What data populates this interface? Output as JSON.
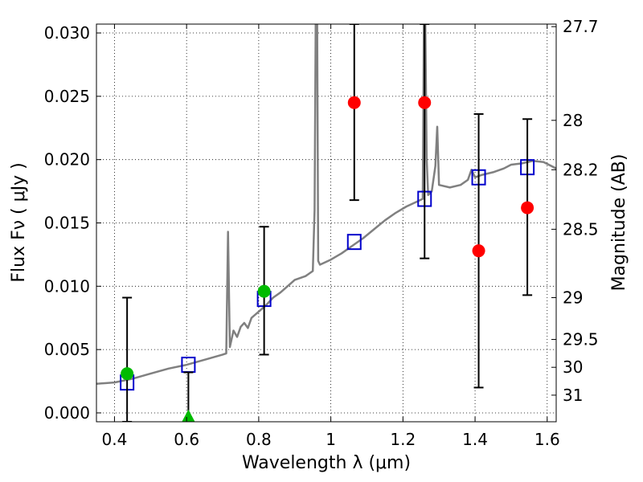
{
  "chart_data": {
    "type": "scatter",
    "xlabel": "Wavelength  λ (μm)",
    "ylabel": "Flux  Fν  ( μJy )",
    "y2label": "Magnitude (AB)",
    "xlim": [
      0.35,
      1.625
    ],
    "ylim": [
      -0.0007,
      0.0307
    ],
    "grid": true,
    "xticks": [
      {
        "value": 0.4,
        "label": "0.4"
      },
      {
        "value": 0.6,
        "label": "0.6"
      },
      {
        "value": 0.8,
        "label": "0.8"
      },
      {
        "value": 1.0,
        "label": "1"
      },
      {
        "value": 1.2,
        "label": "1.2"
      },
      {
        "value": 1.4,
        "label": "1.4"
      },
      {
        "value": 1.6,
        "label": "1.6"
      }
    ],
    "yticks": [
      {
        "value": 0.0,
        "label": "0.000"
      },
      {
        "value": 0.005,
        "label": "0.005"
      },
      {
        "value": 0.01,
        "label": "0.010"
      },
      {
        "value": 0.015,
        "label": "0.015"
      },
      {
        "value": 0.02,
        "label": "0.020"
      },
      {
        "value": 0.025,
        "label": "0.025"
      },
      {
        "value": 0.03,
        "label": "0.030"
      }
    ],
    "y2ticks": [
      {
        "flux": 0.0305,
        "label": "27.7"
      },
      {
        "flux": 0.0231,
        "label": "28"
      },
      {
        "flux": 0.0192,
        "label": "28.2"
      },
      {
        "flux": 0.0145,
        "label": "28.5"
      },
      {
        "flux": 0.0091,
        "label": "29"
      },
      {
        "flux": 0.0058,
        "label": "29.5"
      },
      {
        "flux": 0.0036,
        "label": "30"
      },
      {
        "flux": 0.0014,
        "label": "31"
      }
    ],
    "series": [
      {
        "kind": "line",
        "color": "#808080",
        "points": [
          [
            0.35,
            0.0023
          ],
          [
            0.4,
            0.0024
          ],
          [
            0.45,
            0.0027
          ],
          [
            0.5,
            0.0031
          ],
          [
            0.55,
            0.0035
          ],
          [
            0.6,
            0.0038
          ],
          [
            0.65,
            0.0042
          ],
          [
            0.7,
            0.0046
          ],
          [
            0.71,
            0.0047
          ],
          [
            0.715,
            0.0143
          ],
          [
            0.72,
            0.0052
          ],
          [
            0.73,
            0.0065
          ],
          [
            0.74,
            0.006
          ],
          [
            0.75,
            0.0068
          ],
          [
            0.76,
            0.0071
          ],
          [
            0.77,
            0.0067
          ],
          [
            0.78,
            0.0075
          ],
          [
            0.8,
            0.008
          ],
          [
            0.82,
            0.0085
          ],
          [
            0.84,
            0.0091
          ],
          [
            0.86,
            0.0095
          ],
          [
            0.88,
            0.01
          ],
          [
            0.9,
            0.0105
          ],
          [
            0.93,
            0.0108
          ],
          [
            0.95,
            0.0112
          ],
          [
            0.955,
            0.016
          ],
          [
            0.958,
            0.031
          ],
          [
            0.962,
            0.031
          ],
          [
            0.965,
            0.012
          ],
          [
            0.97,
            0.0117
          ],
          [
            1.0,
            0.0121
          ],
          [
            1.03,
            0.0126
          ],
          [
            1.06,
            0.0132
          ],
          [
            1.09,
            0.0138
          ],
          [
            1.12,
            0.0145
          ],
          [
            1.15,
            0.0152
          ],
          [
            1.18,
            0.0158
          ],
          [
            1.21,
            0.0163
          ],
          [
            1.24,
            0.0167
          ],
          [
            1.255,
            0.0169
          ],
          [
            1.258,
            0.031
          ],
          [
            1.262,
            0.031
          ],
          [
            1.266,
            0.02
          ],
          [
            1.27,
            0.0172
          ],
          [
            1.28,
            0.0175
          ],
          [
            1.29,
            0.0195
          ],
          [
            1.295,
            0.0226
          ],
          [
            1.3,
            0.018
          ],
          [
            1.33,
            0.0178
          ],
          [
            1.36,
            0.018
          ],
          [
            1.38,
            0.0184
          ],
          [
            1.39,
            0.0192
          ],
          [
            1.4,
            0.0186
          ],
          [
            1.42,
            0.0188
          ],
          [
            1.45,
            0.019
          ],
          [
            1.48,
            0.0193
          ],
          [
            1.5,
            0.0196
          ],
          [
            1.53,
            0.0197
          ],
          [
            1.56,
            0.0199
          ],
          [
            1.59,
            0.0198
          ],
          [
            1.625,
            0.0193
          ]
        ]
      },
      {
        "kind": "open-square",
        "color": "#0000cc",
        "points": [
          [
            0.435,
            0.0024
          ],
          [
            0.605,
            0.0038
          ],
          [
            0.815,
            0.009
          ],
          [
            1.065,
            0.0135
          ],
          [
            1.26,
            0.0169
          ],
          [
            1.41,
            0.0186
          ],
          [
            1.545,
            0.0194
          ]
        ]
      },
      {
        "kind": "circle",
        "color": "#00bb00",
        "points": [
          [
            0.435,
            0.0031,
            -0.0007,
            0.0091
          ],
          [
            0.815,
            0.0096,
            0.0046,
            0.0147
          ]
        ]
      },
      {
        "kind": "triangle",
        "color": "#00bb00",
        "points": [
          [
            0.605,
            -0.0003,
            -0.0007,
            0.0032
          ]
        ]
      },
      {
        "kind": "circle",
        "color": "#ff0000",
        "points": [
          [
            1.065,
            0.0245,
            0.0168,
            0.0307
          ],
          [
            1.26,
            0.0245,
            0.0122,
            0.0307
          ],
          [
            1.41,
            0.0128,
            0.002,
            0.0236
          ],
          [
            1.545,
            0.0162,
            0.0093,
            0.0232
          ]
        ]
      }
    ]
  }
}
